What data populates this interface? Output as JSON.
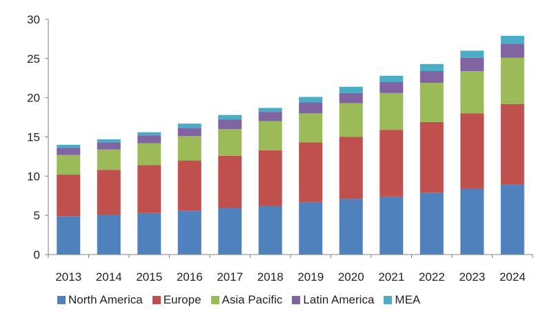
{
  "chart_data": {
    "type": "bar",
    "stacked": true,
    "categories": [
      "2013",
      "2014",
      "2015",
      "2016",
      "2017",
      "2018",
      "2019",
      "2020",
      "2021",
      "2022",
      "2023",
      "2024"
    ],
    "series": [
      {
        "name": "North America",
        "color": "#4f81bd",
        "values": [
          4.9,
          5.1,
          5.3,
          5.6,
          5.9,
          6.2,
          6.7,
          7.1,
          7.4,
          7.9,
          8.4,
          8.9
        ]
      },
      {
        "name": "Europe",
        "color": "#c0504d",
        "values": [
          5.3,
          5.7,
          6.1,
          6.4,
          6.7,
          7.1,
          7.6,
          7.9,
          8.5,
          9.0,
          9.6,
          10.3
        ]
      },
      {
        "name": "Asia Pacific",
        "color": "#9bbb59",
        "values": [
          2.5,
          2.6,
          2.8,
          3.1,
          3.4,
          3.7,
          3.7,
          4.3,
          4.7,
          5.0,
          5.4,
          5.9
        ]
      },
      {
        "name": "Latin America",
        "color": "#8064a2",
        "values": [
          0.9,
          0.9,
          1.0,
          1.0,
          1.2,
          1.2,
          1.4,
          1.3,
          1.4,
          1.5,
          1.7,
          1.8
        ]
      },
      {
        "name": "MEA",
        "color": "#4bacc6",
        "values": [
          0.4,
          0.4,
          0.4,
          0.6,
          0.6,
          0.5,
          0.7,
          0.8,
          0.8,
          0.9,
          0.9,
          1.0
        ]
      }
    ],
    "ylim": [
      0,
      30
    ],
    "yticks": [
      0,
      5,
      10,
      15,
      20,
      25,
      30
    ],
    "legend": "bottom",
    "grid": false,
    "title": "",
    "xlabel": "",
    "ylabel": ""
  }
}
